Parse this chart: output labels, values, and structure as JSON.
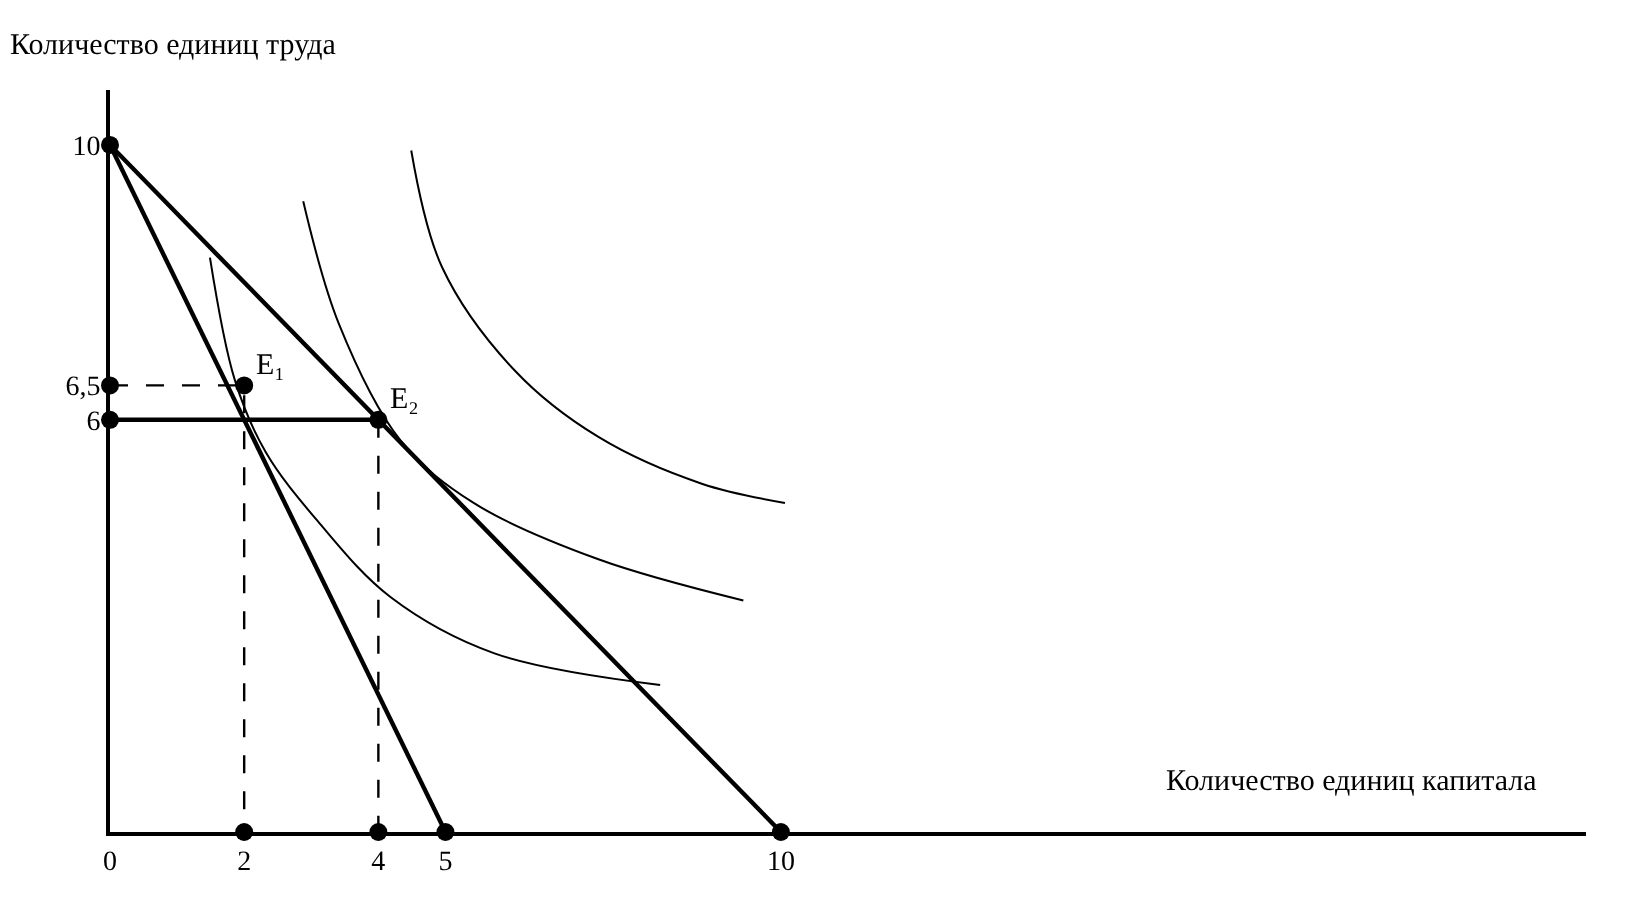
{
  "chart_data": {
    "type": "line",
    "xlabel": "Количество единиц капитала",
    "ylabel": "Количество единиц труда",
    "xlim": [
      0,
      22
    ],
    "ylim": [
      0,
      10.8
    ],
    "xticks": [
      0,
      2,
      4,
      5,
      10
    ],
    "yticks": [
      6,
      {
        "value": 6.5,
        "label": "6,5"
      },
      10
    ],
    "marker": "none",
    "line_style": "solid",
    "series": [
      {
        "color": "#000000",
        "x": [
          0,
          5
        ],
        "values": [
          10,
          0
        ]
      },
      {
        "color": "#000000",
        "x": [
          0,
          10
        ],
        "values": [
          10,
          0
        ]
      },
      {
        "color": "#000000",
        "x": [
          1.49,
          1.86,
          2.32,
          3.1,
          4.18,
          5.73,
          8.2
        ],
        "values": [
          8.36,
          6.58,
          5.53,
          4.52,
          3.42,
          2.6,
          2.14
        ]
      },
      {
        "color": "#000000",
        "x": [
          2.88,
          3.41,
          4.33,
          5.42,
          7.28,
          9.44
        ],
        "values": [
          9.18,
          7.4,
          5.7,
          4.79,
          3.97,
          3.37
        ]
      },
      {
        "color": "#000000",
        "x": [
          4.49,
          4.95,
          6.04,
          7.28,
          8.82,
          10.06
        ],
        "values": [
          9.92,
          8.22,
          6.71,
          5.75,
          5.07,
          4.79
        ]
      },
      {
        "color": "#000000",
        "line_style": "dashed",
        "x": [
          0,
          2,
          2
        ],
        "values": [
          6.5,
          6.5,
          0
        ]
      },
      {
        "color": "#000000",
        "line_style": "dashed",
        "x": [
          4,
          4
        ],
        "values": [
          6,
          0
        ]
      },
      {
        "color": "#000000",
        "x": [
          0,
          4
        ],
        "values": [
          6,
          6
        ]
      },
      {
        "type": "scatter",
        "marker": "circle",
        "color": "#000000",
        "x": [
          0,
          0,
          0,
          2,
          4,
          2,
          4,
          5,
          10
        ],
        "values": [
          10,
          6.5,
          6,
          6.5,
          6,
          0,
          0,
          0,
          0
        ]
      }
    ],
    "annotations": [
      {
        "text": "E₁",
        "x": 2,
        "y": 6.5
      },
      {
        "text": "E₂",
        "x": 4,
        "y": 6
      }
    ]
  }
}
